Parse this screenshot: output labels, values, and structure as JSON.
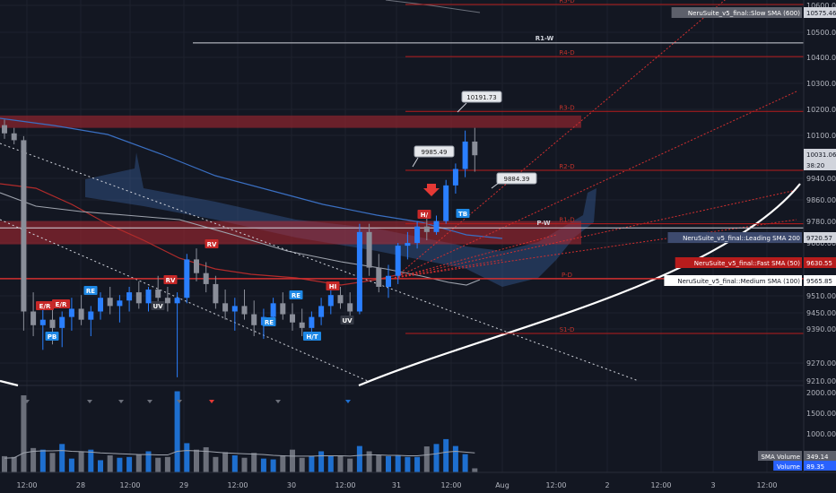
{
  "chart_data": {
    "type": "candlestick",
    "price_axis": {
      "ticks": [
        "10600.00",
        "10500.00",
        "10400.00",
        "10300.00",
        "10200.00",
        "10100.00",
        "9940.00",
        "9860.00",
        "9780.00",
        "9660.00",
        "9510.00",
        "9450.00",
        "9390.00",
        "9270.00",
        "9210.00"
      ],
      "range": [
        9210,
        10600
      ]
    },
    "volume_axis": {
      "ticks": [
        "2000.00",
        "1500.00",
        "1000.00",
        "500.00"
      ],
      "range": [
        0,
        2100
      ]
    },
    "time_axis": {
      "ticks": [
        "12:00",
        "28",
        "12:00",
        "29",
        "12:00",
        "30",
        "12:00",
        "31",
        "12:00",
        "Aug",
        "12:00",
        "2",
        "12:00",
        "3",
        "12:00"
      ]
    },
    "candles": [
      {
        "o": 10150,
        "h": 10170,
        "l": 10100,
        "c": 10120
      },
      {
        "o": 10120,
        "h": 10140,
        "l": 10080,
        "c": 10095
      },
      {
        "o": 10095,
        "h": 10110,
        "l": 9400,
        "c": 9470
      },
      {
        "o": 9470,
        "h": 9540,
        "l": 9380,
        "c": 9420
      },
      {
        "o": 9420,
        "h": 9480,
        "l": 9330,
        "c": 9440
      },
      {
        "o": 9440,
        "h": 9500,
        "l": 9350,
        "c": 9410
      },
      {
        "o": 9410,
        "h": 9470,
        "l": 9340,
        "c": 9450
      },
      {
        "o": 9450,
        "h": 9520,
        "l": 9400,
        "c": 9480
      },
      {
        "o": 9480,
        "h": 9530,
        "l": 9420,
        "c": 9440
      },
      {
        "o": 9440,
        "h": 9490,
        "l": 9380,
        "c": 9470
      },
      {
        "o": 9470,
        "h": 9540,
        "l": 9440,
        "c": 9520
      },
      {
        "o": 9520,
        "h": 9560,
        "l": 9460,
        "c": 9490
      },
      {
        "o": 9490,
        "h": 9530,
        "l": 9430,
        "c": 9510
      },
      {
        "o": 9510,
        "h": 9560,
        "l": 9470,
        "c": 9540
      },
      {
        "o": 9540,
        "h": 9580,
        "l": 9480,
        "c": 9500
      },
      {
        "o": 9500,
        "h": 9560,
        "l": 9470,
        "c": 9550
      },
      {
        "o": 9550,
        "h": 9600,
        "l": 9500,
        "c": 9520
      },
      {
        "o": 9520,
        "h": 9560,
        "l": 9470,
        "c": 9500
      },
      {
        "o": 9500,
        "h": 9540,
        "l": 9230,
        "c": 9520
      },
      {
        "o": 9520,
        "h": 9680,
        "l": 9500,
        "c": 9660
      },
      {
        "o": 9660,
        "h": 9700,
        "l": 9580,
        "c": 9610
      },
      {
        "o": 9610,
        "h": 9650,
        "l": 9540,
        "c": 9570
      },
      {
        "o": 9570,
        "h": 9600,
        "l": 9480,
        "c": 9500
      },
      {
        "o": 9500,
        "h": 9550,
        "l": 9440,
        "c": 9470
      },
      {
        "o": 9470,
        "h": 9520,
        "l": 9400,
        "c": 9490
      },
      {
        "o": 9490,
        "h": 9550,
        "l": 9440,
        "c": 9460
      },
      {
        "o": 9460,
        "h": 9510,
        "l": 9380,
        "c": 9420
      },
      {
        "o": 9420,
        "h": 9480,
        "l": 9370,
        "c": 9450
      },
      {
        "o": 9450,
        "h": 9520,
        "l": 9420,
        "c": 9500
      },
      {
        "o": 9500,
        "h": 9540,
        "l": 9440,
        "c": 9460
      },
      {
        "o": 9460,
        "h": 9500,
        "l": 9400,
        "c": 9430
      },
      {
        "o": 9430,
        "h": 9480,
        "l": 9380,
        "c": 9410
      },
      {
        "o": 9410,
        "h": 9470,
        "l": 9370,
        "c": 9450
      },
      {
        "o": 9450,
        "h": 9520,
        "l": 9420,
        "c": 9490
      },
      {
        "o": 9490,
        "h": 9560,
        "l": 9460,
        "c": 9530
      },
      {
        "o": 9530,
        "h": 9560,
        "l": 9480,
        "c": 9500
      },
      {
        "o": 9500,
        "h": 9540,
        "l": 9440,
        "c": 9470
      },
      {
        "o": 9470,
        "h": 9790,
        "l": 9460,
        "c": 9760
      },
      {
        "o": 9760,
        "h": 9790,
        "l": 9600,
        "c": 9630
      },
      {
        "o": 9630,
        "h": 9680,
        "l": 9540,
        "c": 9560
      },
      {
        "o": 9560,
        "h": 9640,
        "l": 9520,
        "c": 9600
      },
      {
        "o": 9600,
        "h": 9720,
        "l": 9570,
        "c": 9710
      },
      {
        "o": 9710,
        "h": 9760,
        "l": 9660,
        "c": 9720
      },
      {
        "o": 9720,
        "h": 9800,
        "l": 9700,
        "c": 9780
      },
      {
        "o": 9780,
        "h": 9820,
        "l": 9730,
        "c": 9760
      },
      {
        "o": 9760,
        "h": 9820,
        "l": 9750,
        "c": 9800
      },
      {
        "o": 9800,
        "h": 9950,
        "l": 9790,
        "c": 9930
      },
      {
        "o": 9930,
        "h": 10010,
        "l": 9900,
        "c": 9990
      },
      {
        "o": 9990,
        "h": 10130,
        "l": 9960,
        "c": 10090
      },
      {
        "o": 10090,
        "h": 10140,
        "l": 9980,
        "c": 10040
      }
    ],
    "volume": [
      400,
      380,
      1900,
      600,
      560,
      480,
      700,
      340,
      520,
      560,
      300,
      420,
      360,
      380,
      440,
      520,
      360,
      380,
      2000,
      720,
      560,
      620,
      380,
      500,
      420,
      360,
      480,
      340,
      320,
      420,
      560,
      360,
      400,
      520,
      420,
      400,
      340,
      650,
      520,
      420,
      400,
      420,
      380,
      380,
      640,
      700,
      820,
      650,
      450,
      100
    ],
    "volume_sma": [
      350,
      360,
      480,
      520,
      530,
      530,
      540,
      520,
      510,
      500,
      480,
      470,
      460,
      450,
      440,
      440,
      430,
      430,
      520,
      540,
      530,
      520,
      500,
      480,
      470,
      460,
      450,
      440,
      420,
      410,
      400,
      400,
      400,
      410,
      410,
      410,
      400,
      420,
      430,
      430,
      420,
      420,
      410,
      410,
      430,
      460,
      500,
      520,
      500,
      480
    ],
    "price_labels": [
      {
        "text": "NeruSuite_v5_final::Slow SMA (600)",
        "value": "10575.46",
        "color": "#787b86"
      },
      {
        "text": "",
        "value": "10031.06",
        "color": "#d1d4dc"
      },
      {
        "text": "",
        "value": "38:20",
        "color": "#d1d4dc"
      },
      {
        "text": "NeruSuite_v5_final::Leading SMA 200",
        "value": "9720.57",
        "color": "#5b6a91"
      },
      {
        "text": "NeruSuite_v5_final::Fast SMA (50)",
        "value": "9630.55",
        "color": "#b71c1c"
      },
      {
        "text": "NeruSuite_v5_final::Medium SMA (100)",
        "value": "9565.85",
        "color": "#ffffff"
      }
    ],
    "volume_labels": [
      {
        "text": "SMA Volume",
        "value": "349.14",
        "color": "#787b86"
      },
      {
        "text": "Volume",
        "value": "89.35",
        "color": "#2962ff"
      }
    ],
    "levels": [
      {
        "label": "R5-D",
        "price": 10590
      },
      {
        "label": "R4-D",
        "price": 10400
      },
      {
        "label": "R3-D",
        "price": 10200
      },
      {
        "label": "R2-D",
        "price": 9985
      },
      {
        "label": "R1-D",
        "price": 9790
      },
      {
        "label": "P-D",
        "price": 9590
      },
      {
        "label": "S1-D",
        "price": 9390
      }
    ],
    "weekly_levels": [
      {
        "label": "R1-W",
        "price": 10450
      },
      {
        "label": "P-W",
        "price": 9775
      }
    ],
    "zones": [
      {
        "from": 10140,
        "to": 10185
      },
      {
        "from": 9715,
        "to": 9800
      }
    ],
    "callouts": [
      {
        "text": "10191.73",
        "price": 10191.73
      },
      {
        "text": "9985.49",
        "price": 9985.49
      },
      {
        "text": "9884.39",
        "price": 9884.39
      }
    ],
    "signals": [
      {
        "text": "E/R",
        "color": "#c62828"
      },
      {
        "text": "E/R",
        "color": "#c62828"
      },
      {
        "text": "PB",
        "color": "#1e88e5"
      },
      {
        "text": "RE",
        "color": "#1e88e5"
      },
      {
        "text": "UV",
        "color": "#363a45"
      },
      {
        "text": "RV",
        "color": "#c62828"
      },
      {
        "text": "RV",
        "color": "#c62828"
      },
      {
        "text": "RE",
        "color": "#1e88e5"
      },
      {
        "text": "RE",
        "color": "#1e88e5"
      },
      {
        "text": "HI",
        "color": "#c62828"
      },
      {
        "text": "H/T",
        "color": "#1e88e5"
      },
      {
        "text": "UV",
        "color": "#363a45"
      },
      {
        "text": "H/",
        "color": "#c62828"
      },
      {
        "text": "TB",
        "color": "#1e88e5"
      }
    ]
  }
}
